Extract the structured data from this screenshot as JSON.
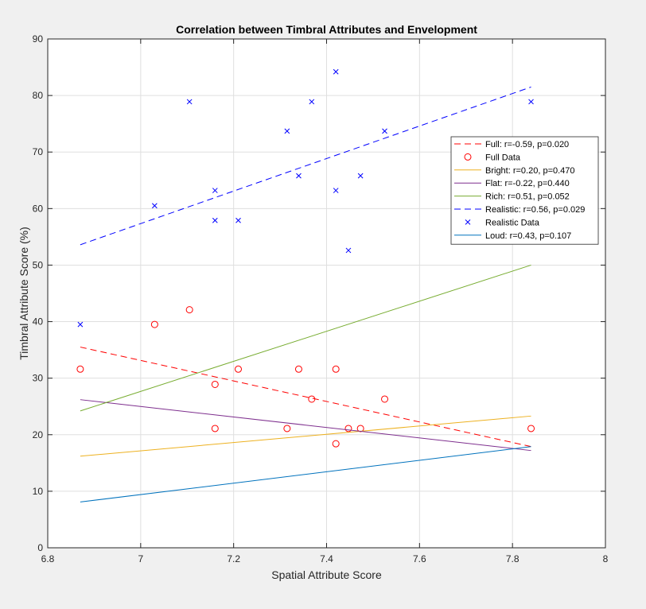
{
  "chart_data": {
    "type": "scatter",
    "title": "Correlation between Timbral Attributes and  Envelopment",
    "xlabel": "Spatial Attribute Score",
    "ylabel": "Timbral Attribute Score (%)",
    "xlim": [
      6.8,
      8
    ],
    "ylim": [
      0,
      90
    ],
    "xticks": [
      6.8,
      7,
      7.2,
      7.4,
      7.6,
      7.8,
      8
    ],
    "xtick_labels": [
      "6.8",
      "7",
      "7.2",
      "7.4",
      "7.6",
      "7.8",
      "8"
    ],
    "yticks": [
      0,
      10,
      20,
      30,
      40,
      50,
      60,
      70,
      80,
      90
    ],
    "ytick_labels": [
      "0",
      "10",
      "20",
      "30",
      "40",
      "50",
      "60",
      "70",
      "80",
      "90"
    ],
    "grid": true,
    "legend_position": "top-right",
    "series": [
      {
        "name": "Full: r=-0.59, p=0.020",
        "kind": "line",
        "style": "dashed",
        "color": "#ff0000",
        "x": [
          6.87,
          7.84
        ],
        "y": [
          35.5,
          17.9
        ]
      },
      {
        "name": "Full Data",
        "kind": "scatter",
        "marker": "circle",
        "color": "#ff0000",
        "x": [
          6.87,
          7.03,
          7.105,
          7.16,
          7.16,
          7.21,
          7.315,
          7.34,
          7.368,
          7.42,
          7.42,
          7.447,
          7.473,
          7.525,
          7.84
        ],
        "y": [
          31.6,
          39.5,
          42.1,
          28.9,
          21.1,
          31.6,
          21.1,
          31.6,
          26.3,
          31.6,
          18.4,
          21.1,
          21.1,
          26.3,
          21.1
        ]
      },
      {
        "name": "Bright: r=0.20, p=0.470",
        "kind": "line",
        "style": "solid",
        "color": "#edb120",
        "x": [
          6.87,
          7.84
        ],
        "y": [
          16.2,
          23.3
        ]
      },
      {
        "name": "Flat: r=-0.22, p=0.440",
        "kind": "line",
        "style": "solid",
        "color": "#7e2f8e",
        "x": [
          6.87,
          7.84
        ],
        "y": [
          26.2,
          17.2
        ]
      },
      {
        "name": "Rich: r=0.51, p=0.052",
        "kind": "line",
        "style": "solid",
        "color": "#77ac30",
        "x": [
          6.87,
          7.84
        ],
        "y": [
          24.2,
          50.0
        ]
      },
      {
        "name": "Realistic: r=0.56, p=0.029",
        "kind": "line",
        "style": "dashed",
        "color": "#0000ff",
        "x": [
          6.87,
          7.84
        ],
        "y": [
          53.6,
          81.5
        ]
      },
      {
        "name": "Realistic Data",
        "kind": "scatter",
        "marker": "x",
        "color": "#0000ff",
        "x": [
          6.87,
          7.03,
          7.105,
          7.16,
          7.16,
          7.21,
          7.315,
          7.34,
          7.368,
          7.42,
          7.42,
          7.447,
          7.473,
          7.525,
          7.84
        ],
        "y": [
          39.5,
          60.5,
          78.9,
          63.2,
          57.9,
          57.9,
          73.7,
          65.8,
          78.9,
          84.2,
          63.2,
          52.6,
          65.8,
          73.7,
          78.9
        ]
      },
      {
        "name": "Loud: r=0.43, p=0.107",
        "kind": "line",
        "style": "solid",
        "color": "#0072bd",
        "x": [
          6.87,
          7.84
        ],
        "y": [
          8.1,
          17.9
        ]
      }
    ]
  }
}
